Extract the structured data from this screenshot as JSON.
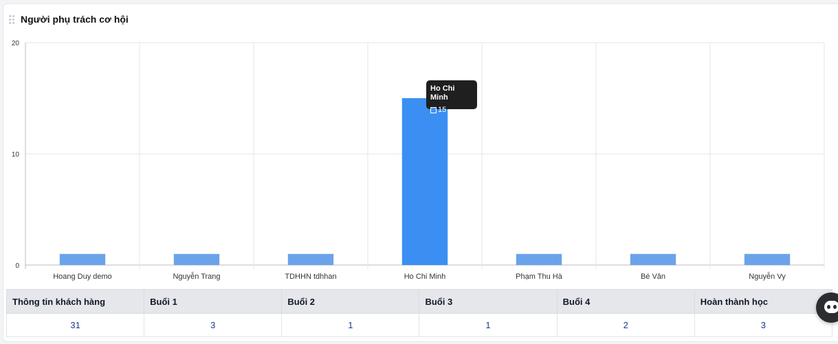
{
  "card": {
    "title": "Người phụ trách cơ hội"
  },
  "chart_data": {
    "type": "bar",
    "categories": [
      "Hoang Duy demo",
      "Nguyễn Trang",
      "TDHHN tdhhan",
      "Ho Chi Minh",
      "Phạm Thu Hà",
      "Bé Vân",
      "Nguyễn Vy"
    ],
    "values": [
      1,
      1,
      1,
      15,
      1,
      1,
      1
    ],
    "ylim": [
      0,
      20
    ],
    "yticks": [
      0,
      10,
      20
    ],
    "grid": true,
    "highlighted_index": 3,
    "colors": {
      "bar": "#6ba3ea",
      "bar_highlight": "#3b8ff2"
    }
  },
  "tooltip": {
    "title": "Ho Chi Minh",
    "value": "15"
  },
  "stats_table": {
    "headers": [
      "Thông tin khách hàng",
      "Buổi 1",
      "Buổi 2",
      "Buổi 3",
      "Buổi 4",
      "Hoàn thành học"
    ],
    "values": [
      "31",
      "3",
      "1",
      "1",
      "2",
      "3"
    ]
  },
  "chat_widget": {
    "icon": "chat-bot-icon"
  }
}
